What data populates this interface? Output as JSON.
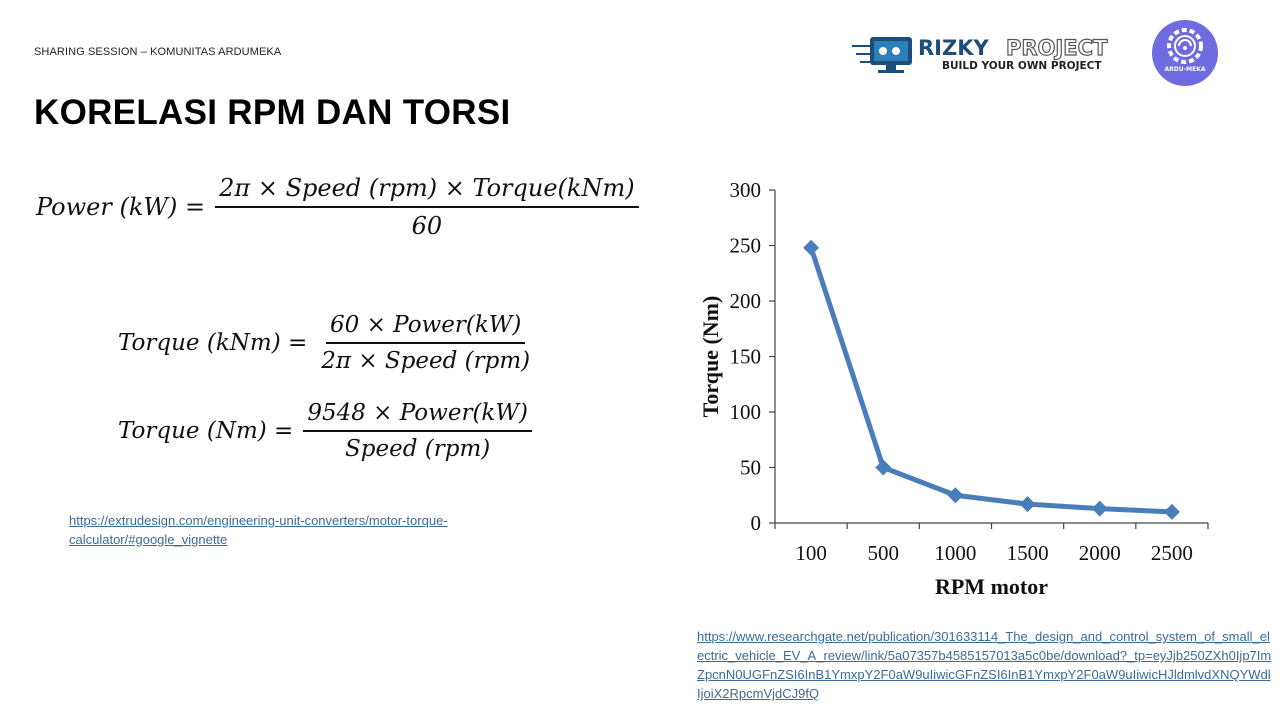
{
  "header": {
    "session": "SHARING SESSION – KOMUNITAS ARDUMEKA"
  },
  "title": "KORELASI RPM DAN TORSI",
  "logo": {
    "name1": "RIZKY",
    "name2": "PROJECT",
    "tagline": "BUILD YOUR OWN PROJECT",
    "badge": "ARDU-MEKA"
  },
  "formulas": {
    "power": {
      "lhs": "Power (kW) =",
      "num": "2π × Speed (rpm) × Torque(kNm)",
      "den": "60"
    },
    "torque_knm": {
      "lhs": "Torque (kNm) =",
      "num": "60 × Power(kW)",
      "den": "2π × Speed (rpm)"
    },
    "torque_nm": {
      "lhs": "Torque (Nm) =",
      "num": "9548 × Power(kW)",
      "den": "Speed (rpm)"
    }
  },
  "links": {
    "extrudesign": "https://extrudesign.com/engineering-unit-converters/motor-torque-calculator/#google_vignette",
    "researchgate": "https://www.researchgate.net/publication/301633114_The_design_and_control_system_of_small_electric_vehicle_EV_A_review/link/5a07357b4585157013a5c0be/download?_tp=eyJjb250ZXh0Ijp7ImZpcnN0UGFnZSI6InB1YmxpY2F0aW9uIiwicGFnZSI6InB1YmxpY2F0aW9uIiwicHJldmlvdXNQYWdlIjoiX2RpcmVjdCJ9fQ"
  },
  "chart_data": {
    "type": "line",
    "categories": [
      "100",
      "500",
      "1000",
      "1500",
      "2000",
      "2500"
    ],
    "values": [
      248,
      50,
      25,
      17,
      13,
      10
    ],
    "xlabel": "RPM motor",
    "ylabel": "Torque (Nm)",
    "ylim": [
      0,
      300
    ],
    "yticks": [
      "0",
      "50",
      "100",
      "150",
      "200",
      "250",
      "300"
    ],
    "grid": false,
    "color": "#4a7ebb"
  }
}
